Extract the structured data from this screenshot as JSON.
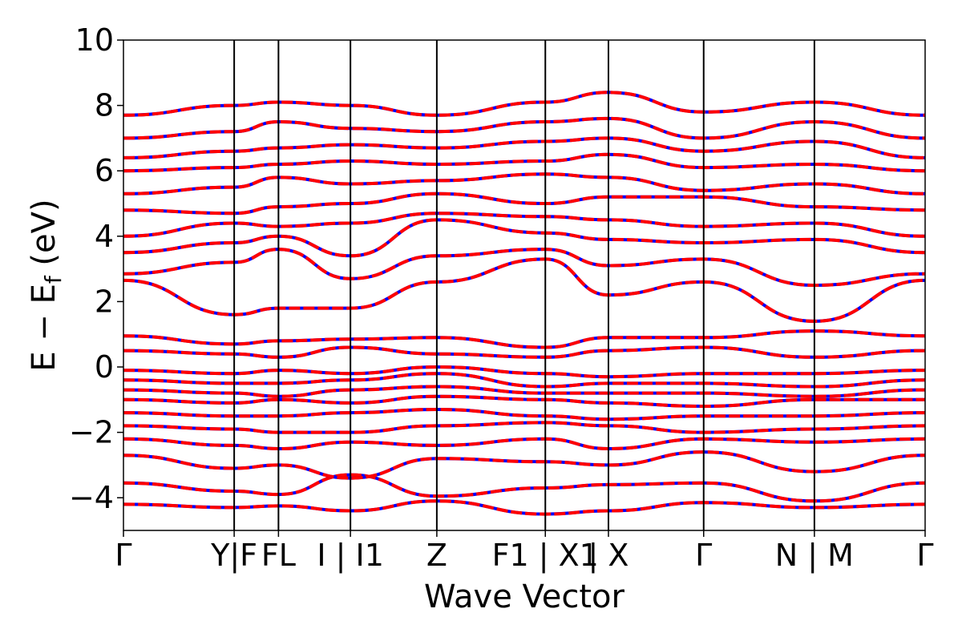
{
  "chart_data": {
    "type": "line",
    "title": "",
    "xlabel": "Wave Vector",
    "ylabel_parts": {
      "main": "E − E",
      "sub": "f",
      "unit": " (eV)"
    },
    "ylim": [
      -5,
      10
    ],
    "y_ticks": [
      -4,
      -2,
      0,
      2,
      4,
      6,
      8,
      10
    ],
    "y_tick_labels": [
      "−4",
      "−2",
      "0",
      "2",
      "4",
      "6",
      "8",
      "10"
    ],
    "x_ticks": [
      0,
      1.0,
      1.4,
      2.05,
      2.83,
      3.81,
      4.38,
      5.24,
      6.24,
      7.24
    ],
    "x_tick_labels": [
      "Γ",
      "Y|F",
      "FL",
      "I | I1",
      "Z",
      "F1 | X1",
      "| X",
      "Γ",
      "N | M",
      "Γ"
    ],
    "xlim": [
      0,
      7.24
    ],
    "series_colors": {
      "primary": "#0000ff",
      "overlay": "#ff0000"
    },
    "grid": false,
    "series": [
      {
        "x": [
          0,
          1.0,
          1.4,
          2.05,
          2.83,
          3.81,
          4.38,
          5.24,
          6.24,
          7.24
        ],
        "values": [
          -4.2,
          -4.3,
          -4.25,
          -4.4,
          -4.1,
          -4.5,
          -4.4,
          -4.15,
          -4.3,
          -4.2
        ]
      },
      {
        "x": [
          0,
          1.0,
          1.4,
          2.05,
          2.83,
          3.81,
          4.38,
          5.24,
          6.24,
          7.24
        ],
        "values": [
          -3.55,
          -3.8,
          -3.9,
          -3.3,
          -3.95,
          -3.7,
          -3.6,
          -3.55,
          -4.1,
          -3.55
        ]
      },
      {
        "x": [
          0,
          1.0,
          1.4,
          2.05,
          2.83,
          3.81,
          4.38,
          5.24,
          6.24,
          7.24
        ],
        "values": [
          -2.7,
          -3.1,
          -3.0,
          -3.4,
          -2.8,
          -2.9,
          -3.0,
          -2.6,
          -3.2,
          -2.7
        ]
      },
      {
        "x": [
          0,
          1.0,
          1.4,
          2.05,
          2.83,
          3.81,
          4.38,
          5.24,
          6.24,
          7.24
        ],
        "values": [
          -2.2,
          -2.4,
          -2.5,
          -2.3,
          -2.4,
          -2.2,
          -2.5,
          -2.2,
          -2.3,
          -2.2
        ]
      },
      {
        "x": [
          0,
          1.0,
          1.4,
          2.05,
          2.83,
          3.81,
          4.38,
          5.24,
          6.24,
          7.24
        ],
        "values": [
          -1.8,
          -1.9,
          -2.0,
          -2.0,
          -1.8,
          -1.7,
          -1.8,
          -2.0,
          -1.9,
          -1.8
        ]
      },
      {
        "x": [
          0,
          1.0,
          1.4,
          2.05,
          2.83,
          3.81,
          4.38,
          5.24,
          6.24,
          7.24
        ],
        "values": [
          -1.4,
          -1.5,
          -1.5,
          -1.4,
          -1.3,
          -1.5,
          -1.6,
          -1.5,
          -1.5,
          -1.4
        ]
      },
      {
        "x": [
          0,
          1.0,
          1.4,
          2.05,
          2.83,
          3.81,
          4.38,
          5.24,
          6.24,
          7.24
        ],
        "values": [
          -1.0,
          -1.1,
          -1.0,
          -1.1,
          -0.9,
          -1.0,
          -1.1,
          -1.2,
          -1.0,
          -1.0
        ]
      },
      {
        "x": [
          0,
          1.0,
          1.4,
          2.05,
          2.83,
          3.81,
          4.38,
          5.24,
          6.24,
          7.24
        ],
        "values": [
          -0.7,
          -0.8,
          -0.9,
          -0.7,
          -0.6,
          -0.8,
          -0.8,
          -0.8,
          -0.9,
          -0.7
        ]
      },
      {
        "x": [
          0,
          1.0,
          1.4,
          2.05,
          2.83,
          3.81,
          4.38,
          5.24,
          6.24,
          7.24
        ],
        "values": [
          -0.4,
          -0.5,
          -0.5,
          -0.4,
          -0.2,
          -0.6,
          -0.5,
          -0.5,
          -0.6,
          -0.4
        ]
      },
      {
        "x": [
          0,
          1.0,
          1.4,
          2.05,
          2.83,
          3.81,
          4.38,
          5.24,
          6.24,
          7.24
        ],
        "values": [
          -0.1,
          -0.2,
          -0.1,
          -0.2,
          0.0,
          -0.2,
          -0.3,
          -0.2,
          -0.2,
          -0.1
        ]
      },
      {
        "x": [
          0,
          1.0,
          1.4,
          2.05,
          2.83,
          3.81,
          4.38,
          5.24,
          6.24,
          7.24
        ],
        "values": [
          0.5,
          0.4,
          0.3,
          0.6,
          0.4,
          0.3,
          0.5,
          0.6,
          0.3,
          0.5
        ]
      },
      {
        "x": [
          0,
          1.0,
          1.4,
          2.05,
          2.83,
          3.81,
          4.38,
          5.24,
          6.24,
          7.24
        ],
        "values": [
          0.95,
          0.7,
          0.8,
          0.85,
          0.9,
          0.6,
          0.9,
          0.9,
          1.1,
          0.95
        ]
      },
      {
        "x": [
          0,
          1.0,
          1.4,
          2.05,
          2.83,
          3.81,
          4.38,
          5.24,
          6.24,
          7.24
        ],
        "values": [
          2.65,
          1.6,
          1.8,
          1.8,
          2.6,
          3.3,
          2.2,
          2.6,
          1.4,
          2.65
        ]
      },
      {
        "x": [
          0,
          1.0,
          1.4,
          2.05,
          2.83,
          3.81,
          4.38,
          5.24,
          6.24,
          7.24
        ],
        "values": [
          2.85,
          3.2,
          3.6,
          2.7,
          3.4,
          3.6,
          3.1,
          3.3,
          2.5,
          2.85
        ]
      },
      {
        "x": [
          0,
          1.0,
          1.4,
          2.05,
          2.83,
          3.81,
          4.38,
          5.24,
          6.24,
          7.24
        ],
        "values": [
          3.5,
          3.8,
          4.0,
          3.4,
          4.5,
          4.1,
          3.9,
          3.8,
          3.9,
          3.5
        ]
      },
      {
        "x": [
          0,
          1.0,
          1.4,
          2.05,
          2.83,
          3.81,
          4.38,
          5.24,
          6.24,
          7.24
        ],
        "values": [
          4.0,
          4.4,
          4.3,
          4.4,
          4.7,
          4.6,
          4.5,
          4.3,
          4.4,
          4.0
        ]
      },
      {
        "x": [
          0,
          1.0,
          1.4,
          2.05,
          2.83,
          3.81,
          4.38,
          5.24,
          6.24,
          7.24
        ],
        "values": [
          4.8,
          4.7,
          4.9,
          5.0,
          5.3,
          5.0,
          5.2,
          5.2,
          4.9,
          4.8
        ]
      },
      {
        "x": [
          0,
          1.0,
          1.4,
          2.05,
          2.83,
          3.81,
          4.38,
          5.24,
          6.24,
          7.24
        ],
        "values": [
          5.3,
          5.5,
          5.8,
          5.6,
          5.7,
          5.9,
          5.8,
          5.4,
          5.6,
          5.3
        ]
      },
      {
        "x": [
          0,
          1.0,
          1.4,
          2.05,
          2.83,
          3.81,
          4.38,
          5.24,
          6.24,
          7.24
        ],
        "values": [
          6.0,
          6.1,
          6.2,
          6.3,
          6.2,
          6.3,
          6.5,
          6.1,
          6.2,
          6.0
        ]
      },
      {
        "x": [
          0,
          1.0,
          1.4,
          2.05,
          2.83,
          3.81,
          4.38,
          5.24,
          6.24,
          7.24
        ],
        "values": [
          6.4,
          6.6,
          6.7,
          6.8,
          6.7,
          6.9,
          7.0,
          6.6,
          6.9,
          6.4
        ]
      },
      {
        "x": [
          0,
          1.0,
          1.4,
          2.05,
          2.83,
          3.81,
          4.38,
          5.24,
          6.24,
          7.24
        ],
        "values": [
          7.0,
          7.2,
          7.5,
          7.3,
          7.2,
          7.5,
          7.6,
          7.0,
          7.5,
          7.0
        ]
      },
      {
        "x": [
          0,
          1.0,
          1.4,
          2.05,
          2.83,
          3.81,
          4.38,
          5.24,
          6.24,
          7.24
        ],
        "values": [
          7.7,
          8.0,
          8.1,
          8.0,
          7.7,
          8.1,
          8.4,
          7.8,
          8.1,
          7.7
        ]
      }
    ]
  }
}
